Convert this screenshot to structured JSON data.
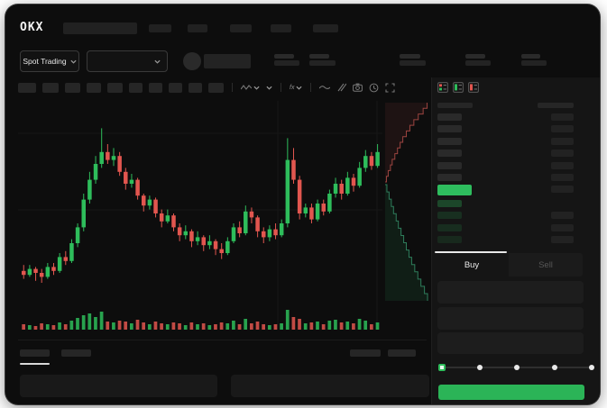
{
  "header": {
    "logo": "OKX",
    "market_selector": "Spot Trading"
  },
  "toolbar": {
    "interval_block_count": 10,
    "icons": [
      "line-style-icon",
      "chevron-down-icon",
      "indicators-icon",
      "chevron-down-icon",
      "wave-icon",
      "compare-icon",
      "camera-icon",
      "history-icon",
      "fullscreen-icon"
    ]
  },
  "order_book": {
    "view_mode_icons": [
      "book-both-icon",
      "book-bids-icon",
      "book-asks-icon"
    ],
    "ask_row_count": 6,
    "bid_row_count": 4,
    "price_row_has_right_block": true,
    "first_bid_right_missing": true
  },
  "trade_panel": {
    "buy_label": "Buy",
    "sell_label": "Sell",
    "slider_steps": 5,
    "slider_value_index": 0
  },
  "colors": {
    "up": "#2ebd5b",
    "down": "#e2564f",
    "accent_button": "#2bb457",
    "price_bar": "#2ebd5e",
    "depth_ask_line": "#9c4440",
    "depth_ask_fill": "rgba(190,80,75,0.10)",
    "depth_bid_line": "#2e7d5b",
    "depth_bid_fill": "rgba(46,189,110,0.10)",
    "grid": "#161616"
  },
  "chart_data": {
    "type": "candlestick",
    "units": "relative price levels 0-100 (estimated, no axis labels visible)",
    "candles": [
      [
        16,
        14,
        19,
        12
      ],
      [
        14,
        17,
        19,
        13
      ],
      [
        17,
        15,
        18,
        11
      ],
      [
        15,
        13,
        17,
        10
      ],
      [
        13,
        18,
        20,
        12
      ],
      [
        18,
        16,
        20,
        14
      ],
      [
        16,
        23,
        25,
        15
      ],
      [
        23,
        21,
        26,
        19
      ],
      [
        21,
        30,
        32,
        20
      ],
      [
        30,
        38,
        40,
        28
      ],
      [
        38,
        52,
        55,
        36
      ],
      [
        52,
        62,
        66,
        50
      ],
      [
        62,
        70,
        74,
        60
      ],
      [
        70,
        76,
        88,
        68
      ],
      [
        76,
        72,
        80,
        70
      ],
      [
        72,
        74,
        78,
        69
      ],
      [
        74,
        66,
        76,
        64
      ],
      [
        66,
        60,
        68,
        57
      ],
      [
        60,
        62,
        65,
        58
      ],
      [
        62,
        54,
        63,
        52
      ],
      [
        54,
        49,
        55,
        46
      ],
      [
        49,
        52,
        54,
        47
      ],
      [
        52,
        45,
        53,
        43
      ],
      [
        45,
        41,
        47,
        38
      ],
      [
        41,
        44,
        47,
        40
      ],
      [
        44,
        38,
        45,
        36
      ],
      [
        38,
        34,
        40,
        31
      ],
      [
        34,
        36,
        39,
        32
      ],
      [
        36,
        31,
        37,
        28
      ],
      [
        31,
        33,
        36,
        29
      ],
      [
        33,
        29,
        34,
        26
      ],
      [
        29,
        31,
        34,
        27
      ],
      [
        31,
        27,
        32,
        24
      ],
      [
        27,
        25,
        30,
        22
      ],
      [
        25,
        31,
        33,
        24
      ],
      [
        31,
        38,
        40,
        30
      ],
      [
        38,
        35,
        41,
        33
      ],
      [
        35,
        46,
        49,
        34
      ],
      [
        46,
        43,
        48,
        40
      ],
      [
        43,
        36,
        44,
        33
      ],
      [
        36,
        33,
        38,
        30
      ],
      [
        33,
        37,
        39,
        31
      ],
      [
        37,
        34,
        40,
        32
      ],
      [
        34,
        40,
        42,
        33
      ],
      [
        40,
        72,
        83,
        38
      ],
      [
        72,
        62,
        78,
        60
      ],
      [
        62,
        45,
        64,
        42
      ],
      [
        45,
        48,
        50,
        43
      ],
      [
        48,
        42,
        50,
        40
      ],
      [
        42,
        50,
        52,
        41
      ],
      [
        50,
        46,
        52,
        44
      ],
      [
        46,
        55,
        57,
        45
      ],
      [
        55,
        60,
        63,
        53
      ],
      [
        60,
        55,
        62,
        52
      ],
      [
        55,
        63,
        66,
        54
      ],
      [
        63,
        59,
        65,
        56
      ],
      [
        59,
        68,
        71,
        58
      ],
      [
        68,
        74,
        77,
        66
      ],
      [
        74,
        69,
        76,
        67
      ],
      [
        69,
        76,
        80,
        68
      ]
    ],
    "volumes": [
      6,
      5,
      4,
      7,
      6,
      5,
      8,
      6,
      10,
      13,
      16,
      18,
      14,
      20,
      9,
      8,
      10,
      9,
      7,
      11,
      8,
      6,
      9,
      7,
      6,
      8,
      7,
      5,
      8,
      6,
      7,
      5,
      6,
      8,
      7,
      10,
      6,
      12,
      7,
      9,
      6,
      5,
      6,
      7,
      22,
      14,
      12,
      7,
      8,
      9,
      6,
      10,
      11,
      8,
      9,
      7,
      12,
      10,
      6,
      8
    ],
    "depth": {
      "asks_cum_fractions": [
        0.03,
        0.07,
        0.12,
        0.16,
        0.22,
        0.28,
        0.34,
        0.4,
        0.48,
        0.56,
        0.65,
        0.75,
        0.86,
        0.95
      ],
      "bids_cum_fractions": [
        0.04,
        0.09,
        0.14,
        0.19,
        0.25,
        0.3,
        0.36,
        0.42,
        0.48,
        0.54,
        0.6,
        0.67,
        0.74,
        0.81,
        0.89,
        0.96
      ]
    }
  }
}
